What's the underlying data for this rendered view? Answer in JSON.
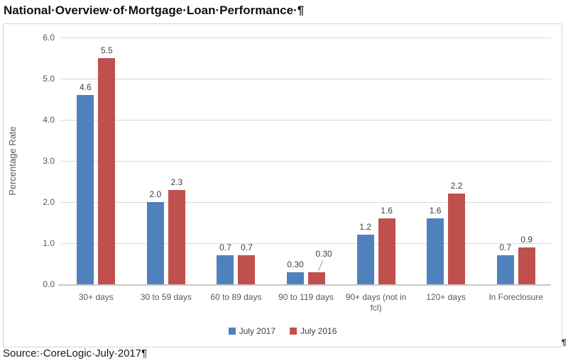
{
  "document": {
    "title": "National·Overview·of·Mortgage·Loan·Performance·¶",
    "source_line": "Source:·CoreLogic·July·2017¶",
    "chart_paragraph_mark": "¶"
  },
  "chart_data": {
    "type": "bar",
    "title": "",
    "xlabel": "",
    "ylabel": "Percentage Rate",
    "ylim": [
      0,
      6
    ],
    "ytick_values": [
      0,
      1,
      2,
      3,
      4,
      5,
      6
    ],
    "ytick_labels": [
      "0.0",
      "1.0",
      "2.0",
      "3.0",
      "4.0",
      "5.0",
      "6.0"
    ],
    "grid": true,
    "legend_position": "bottom",
    "categories": [
      "30+ days",
      "30 to 59 days",
      "60 to 89 days",
      "90 to 119 days",
      "90+ days (not in fcl)",
      "120+ days",
      "In Foreclosure"
    ],
    "series": [
      {
        "name": "July 2017",
        "color": "#4F81BD",
        "values": [
          4.6,
          2.0,
          0.7,
          0.3,
          1.2,
          1.6,
          0.7
        ],
        "labels": [
          "4.6",
          "2.0",
          "0.7",
          "0.30",
          "1.2",
          "1.6",
          "0.7"
        ]
      },
      {
        "name": "July 2016",
        "color": "#C0504D",
        "values": [
          5.5,
          2.3,
          0.7,
          0.3,
          1.6,
          2.2,
          0.9
        ],
        "labels": [
          "5.5",
          "2.3",
          "0.7",
          "0.30",
          "1.6",
          "2.2",
          "0.9"
        ]
      }
    ],
    "label_callouts": [
      {
        "series_index": 1,
        "category_index": 3
      }
    ]
  },
  "palette": {
    "july_2017_blue": "#4F81BD",
    "july_2016_red": "#C0504D",
    "gridline_gray": "#D9D9D9",
    "axis_line_gray": "#C8C8C8",
    "axis_text_gray": "#595959",
    "data_label_gray": "#3F3F3F",
    "leader_line_gray": "#9A9A9A"
  }
}
